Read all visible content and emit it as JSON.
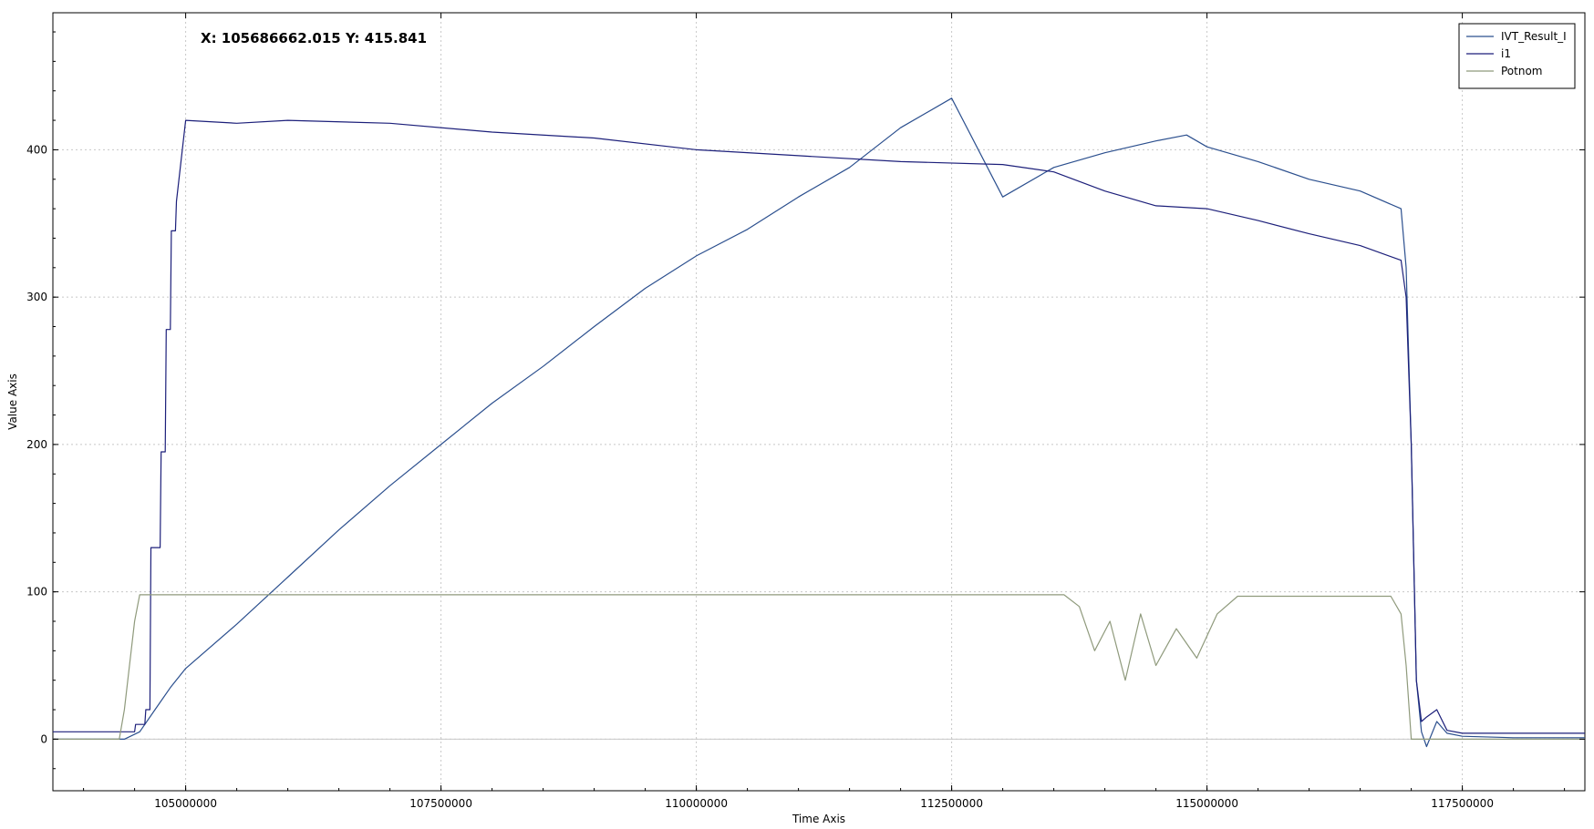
{
  "readout": {
    "text": "X: 105686662.015 Y: 415.841"
  },
  "chart_data": {
    "type": "line",
    "xlabel": "Time Axis",
    "ylabel": "Value Axis",
    "xlim": [
      103700000,
      118700000
    ],
    "ylim": [
      -35,
      493
    ],
    "x_ticks": [
      105000000,
      107500000,
      110000000,
      112500000,
      115000000,
      117500000
    ],
    "x_tick_labels": [
      "105000000",
      "107500000",
      "110000000",
      "112500000",
      "115000000",
      "117500000"
    ],
    "y_ticks": [
      0,
      100,
      200,
      300,
      400
    ],
    "y_tick_labels": [
      "0",
      "100",
      "200",
      "300",
      "400"
    ],
    "grid": true,
    "legend_position": "top-right",
    "series": [
      {
        "name": "IVT_Result_I",
        "color": "#2b4f8e",
        "x": [
          103700000,
          104400000,
          104550000,
          104700000,
          104850000,
          105000000,
          105500000,
          106000000,
          106500000,
          107000000,
          107500000,
          108000000,
          108500000,
          109000000,
          109500000,
          110000000,
          110500000,
          111000000,
          111500000,
          112000000,
          112500000,
          113000000,
          113500000,
          114000000,
          114500000,
          114800000,
          115000000,
          115500000,
          116000000,
          116500000,
          116900000,
          116950000,
          117000000,
          117050000,
          117100000,
          117150000,
          117250000,
          117350000,
          117500000,
          118000000,
          118700000
        ],
        "y": [
          0,
          0,
          5,
          20,
          35,
          48,
          78,
          110,
          142,
          172,
          200,
          228,
          253,
          280,
          306,
          328,
          346,
          368,
          388,
          415,
          435,
          368,
          388,
          398,
          406,
          410,
          402,
          392,
          380,
          372,
          360,
          320,
          200,
          40,
          5,
          -5,
          12,
          4,
          2,
          1,
          1
        ]
      },
      {
        "name": "i1",
        "color": "#1c1f7a",
        "x": [
          103700000,
          104500000,
          104510000,
          104600000,
          104610000,
          104650000,
          104660000,
          104750000,
          104760000,
          104800000,
          104810000,
          104850000,
          104860000,
          104900000,
          104910000,
          105000000,
          105500000,
          106000000,
          107000000,
          108000000,
          109000000,
          110000000,
          111000000,
          112000000,
          113000000,
          113500000,
          114000000,
          114500000,
          115000000,
          115500000,
          116000000,
          116500000,
          116900000,
          116950000,
          117000000,
          117050000,
          117100000,
          117150000,
          117250000,
          117350000,
          117500000,
          118000000,
          118700000
        ],
        "y": [
          5,
          5,
          10,
          10,
          20,
          20,
          130,
          130,
          195,
          195,
          278,
          278,
          345,
          345,
          365,
          420,
          418,
          420,
          418,
          412,
          408,
          400,
          396,
          392,
          390,
          385,
          372,
          362,
          360,
          352,
          343,
          335,
          325,
          300,
          200,
          40,
          12,
          15,
          20,
          6,
          4,
          4,
          4
        ]
      },
      {
        "name": "Potnom",
        "color": "#8f9a7c",
        "x": [
          103700000,
          104350000,
          104400000,
          104500000,
          104550000,
          104600000,
          113600000,
          113750000,
          113900000,
          114050000,
          114200000,
          114350000,
          114500000,
          114700000,
          114900000,
          115100000,
          115300000,
          116800000,
          116900000,
          116950000,
          117000000,
          118700000
        ],
        "y": [
          0,
          0,
          20,
          80,
          98,
          98,
          98,
          90,
          60,
          80,
          40,
          85,
          50,
          75,
          55,
          85,
          97,
          97,
          85,
          50,
          0,
          0
        ]
      }
    ]
  },
  "legend": {
    "items": [
      {
        "label": "IVT_Result_I",
        "color": "#2b4f8e"
      },
      {
        "label": "i1",
        "color": "#1c1f7a"
      },
      {
        "label": "Potnom",
        "color": "#8f9a7c"
      }
    ]
  }
}
